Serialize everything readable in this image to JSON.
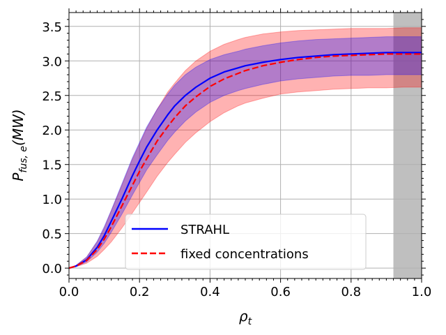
{
  "chart_data": {
    "type": "line",
    "xlabel": "ρ",
    "xlabel_sub": "t",
    "ylabel": "P",
    "ylabel_sub": "fus, e",
    "ylabel_tail": "(MW)",
    "xlim": [
      0.0,
      1.0
    ],
    "ylim": [
      -0.15,
      3.7
    ],
    "xticks": [
      "0.0",
      "0.2",
      "0.4",
      "0.6",
      "0.8",
      "1.0"
    ],
    "xtick_values": [
      0.0,
      0.2,
      0.4,
      0.6,
      0.8,
      1.0
    ],
    "yticks": [
      "0.0",
      "0.5",
      "1.0",
      "1.5",
      "2.0",
      "2.5",
      "3.0",
      "3.5"
    ],
    "ytick_values": [
      0.0,
      0.5,
      1.0,
      1.5,
      2.0,
      2.5,
      3.0,
      3.5
    ],
    "grid": true,
    "shaded_region": {
      "x_start": 0.92,
      "x_end": 1.0,
      "color": "#bfbfbf"
    },
    "x": [
      0.0,
      0.02,
      0.05,
      0.08,
      0.1,
      0.12,
      0.15,
      0.18,
      0.2,
      0.22,
      0.25,
      0.28,
      0.3,
      0.33,
      0.36,
      0.4,
      0.44,
      0.48,
      0.5,
      0.55,
      0.6,
      0.65,
      0.7,
      0.75,
      0.8,
      0.85,
      0.9,
      0.95,
      1.0
    ],
    "series": [
      {
        "name": "STRAHL",
        "color": "#0000ff",
        "style": "solid",
        "band_color": "#0000ff",
        "values": [
          0.0,
          0.03,
          0.12,
          0.3,
          0.47,
          0.68,
          1.0,
          1.34,
          1.55,
          1.75,
          2.0,
          2.22,
          2.35,
          2.5,
          2.62,
          2.75,
          2.84,
          2.9,
          2.93,
          2.98,
          3.02,
          3.05,
          3.07,
          3.09,
          3.1,
          3.11,
          3.12,
          3.12,
          3.12
        ],
        "upper": [
          0.0,
          0.04,
          0.16,
          0.39,
          0.6,
          0.84,
          1.22,
          1.6,
          1.82,
          2.04,
          2.3,
          2.52,
          2.65,
          2.8,
          2.91,
          3.02,
          3.09,
          3.14,
          3.17,
          3.22,
          3.26,
          3.29,
          3.31,
          3.32,
          3.33,
          3.34,
          3.35,
          3.35,
          3.35
        ],
        "lower": [
          0.0,
          0.02,
          0.09,
          0.23,
          0.36,
          0.52,
          0.78,
          1.06,
          1.24,
          1.42,
          1.64,
          1.85,
          1.97,
          2.13,
          2.26,
          2.4,
          2.5,
          2.57,
          2.6,
          2.66,
          2.71,
          2.74,
          2.76,
          2.78,
          2.79,
          2.79,
          2.8,
          2.8,
          2.8
        ]
      },
      {
        "name": "fixed concentrations",
        "color": "#ff0000",
        "style": "dashed",
        "band_color": "#ff0000",
        "values": [
          0.0,
          0.03,
          0.11,
          0.27,
          0.42,
          0.6,
          0.9,
          1.2,
          1.4,
          1.58,
          1.84,
          2.05,
          2.18,
          2.35,
          2.48,
          2.63,
          2.74,
          2.82,
          2.86,
          2.93,
          2.98,
          3.02,
          3.05,
          3.07,
          3.08,
          3.09,
          3.1,
          3.1,
          3.1
        ],
        "upper": [
          0.0,
          0.04,
          0.16,
          0.38,
          0.58,
          0.83,
          1.2,
          1.58,
          1.8,
          2.02,
          2.3,
          2.55,
          2.68,
          2.86,
          3.0,
          3.14,
          3.24,
          3.31,
          3.34,
          3.39,
          3.42,
          3.44,
          3.45,
          3.46,
          3.47,
          3.47,
          3.47,
          3.48,
          3.48
        ],
        "lower": [
          0.0,
          0.02,
          0.07,
          0.17,
          0.27,
          0.38,
          0.58,
          0.8,
          0.95,
          1.1,
          1.33,
          1.53,
          1.65,
          1.82,
          1.96,
          2.12,
          2.25,
          2.35,
          2.39,
          2.46,
          2.52,
          2.55,
          2.57,
          2.59,
          2.6,
          2.61,
          2.61,
          2.62,
          2.62
        ]
      }
    ],
    "legend": {
      "position": "lower-center",
      "entries": [
        "STRAHL",
        "fixed concentrations"
      ]
    }
  }
}
